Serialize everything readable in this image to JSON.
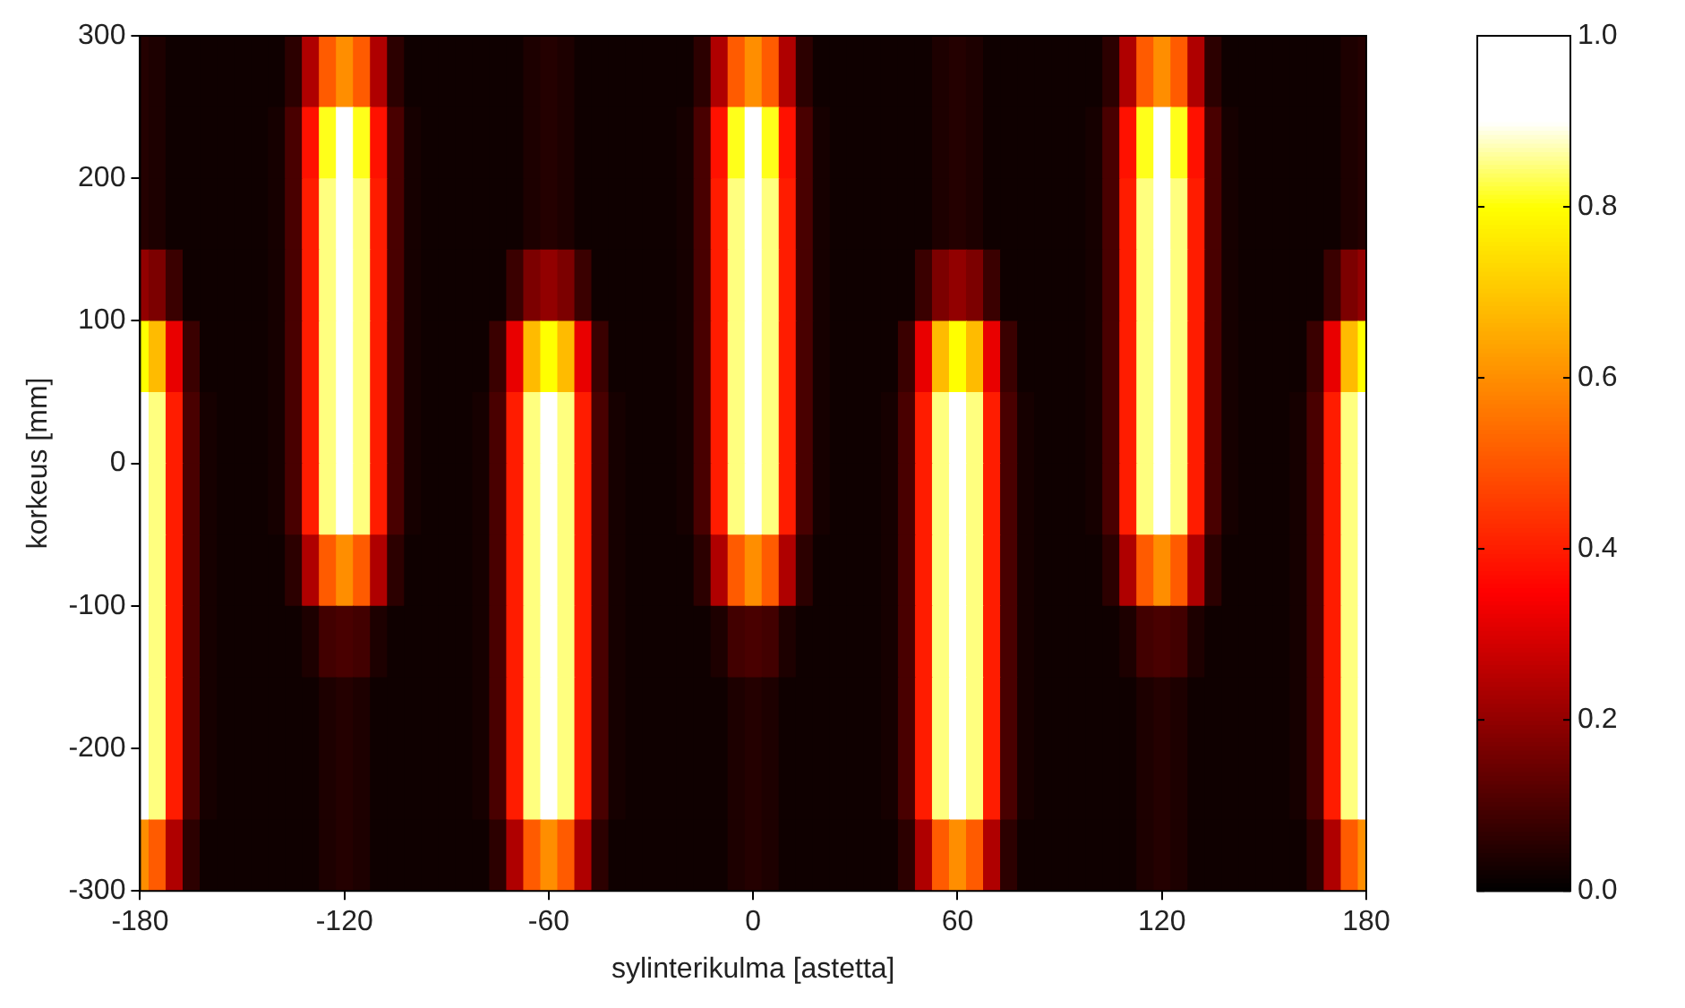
{
  "chart_data": {
    "type": "heatmap",
    "xlabel": "sylinterikulma [astetta]",
    "ylabel": "korkeus [mm]",
    "xlim": [
      -180,
      180
    ],
    "xticks": [
      -180,
      -120,
      -60,
      0,
      60,
      120,
      180
    ],
    "ylim": [
      -300,
      300
    ],
    "yticks": [
      -300,
      -200,
      -100,
      0,
      100,
      200,
      300
    ],
    "clim": [
      0,
      1
    ],
    "cticks": [
      {
        "value": 0,
        "label": "0.0"
      },
      {
        "value": 0.2,
        "label": "0.2"
      },
      {
        "value": 0.4,
        "label": "0.4"
      },
      {
        "value": 0.6,
        "label": "0.6"
      },
      {
        "value": 0.8,
        "label": "0.8"
      },
      {
        "value": 1,
        "label": "1.0"
      }
    ],
    "x": [
      -180,
      -175,
      -170,
      -165,
      -160,
      -155,
      -150,
      -145,
      -140,
      -135,
      -130,
      -125,
      -120,
      -115,
      -110,
      -105,
      -100,
      -95,
      -90,
      -85,
      -80,
      -75,
      -70,
      -65,
      -60,
      -55,
      -50,
      -45,
      -40,
      -35,
      -30,
      -25,
      -20,
      -15,
      -10,
      -5,
      0,
      5,
      10,
      15,
      20,
      25,
      30,
      35,
      40,
      45,
      50,
      55,
      60,
      65,
      70,
      75,
      80,
      85,
      90,
      95,
      100,
      105,
      110,
      115,
      120,
      125,
      130,
      135,
      140,
      145,
      150,
      155,
      160,
      165,
      170,
      175,
      180
    ],
    "y": [
      275,
      225,
      175,
      125,
      75,
      25,
      -25,
      -75,
      -125,
      -175,
      -225,
      -275
    ],
    "cells": [
      [
        0.05,
        0.04,
        0.02,
        0.02,
        0.02,
        0.02,
        0.02,
        0.02,
        0.02,
        0.06,
        0.24,
        0.51,
        0.6,
        0.51,
        0.24,
        0.06,
        0.02,
        0.02,
        0.02,
        0.02,
        0.02,
        0.02,
        0.02,
        0.04,
        0.05,
        0.04,
        0.02,
        0.02,
        0.02,
        0.02,
        0.02,
        0.02,
        0.02,
        0.06,
        0.24,
        0.51,
        0.6,
        0.51,
        0.24,
        0.06,
        0.02,
        0.02,
        0.02,
        0.02,
        0.02,
        0.02,
        0.02,
        0.04,
        0.05,
        0.04,
        0.02,
        0.02,
        0.02,
        0.02,
        0.02,
        0.02,
        0.02,
        0.06,
        0.24,
        0.51,
        0.6,
        0.51,
        0.24,
        0.06,
        0.02,
        0.02,
        0.02,
        0.02,
        0.02,
        0.02,
        0.02,
        0.04,
        0.05
      ],
      [
        0.05,
        0.04,
        0.02,
        0.02,
        0.02,
        0.02,
        0.02,
        0.02,
        0.03,
        0.1,
        0.38,
        0.81,
        0.95,
        0.81,
        0.38,
        0.1,
        0.03,
        0.02,
        0.02,
        0.02,
        0.02,
        0.02,
        0.02,
        0.04,
        0.05,
        0.04,
        0.02,
        0.02,
        0.02,
        0.02,
        0.02,
        0.02,
        0.03,
        0.1,
        0.38,
        0.81,
        0.95,
        0.81,
        0.38,
        0.1,
        0.03,
        0.02,
        0.02,
        0.02,
        0.02,
        0.02,
        0.02,
        0.04,
        0.05,
        0.04,
        0.02,
        0.02,
        0.02,
        0.02,
        0.02,
        0.02,
        0.03,
        0.1,
        0.38,
        0.81,
        0.95,
        0.81,
        0.38,
        0.1,
        0.03,
        0.02,
        0.02,
        0.02,
        0.02,
        0.02,
        0.02,
        0.04,
        0.05
      ],
      [
        0.05,
        0.04,
        0.02,
        0.02,
        0.02,
        0.02,
        0.02,
        0.02,
        0.03,
        0.1,
        0.4,
        0.85,
        1,
        0.85,
        0.4,
        0.1,
        0.03,
        0.02,
        0.02,
        0.02,
        0.02,
        0.02,
        0.02,
        0.04,
        0.05,
        0.04,
        0.02,
        0.02,
        0.02,
        0.02,
        0.02,
        0.02,
        0.03,
        0.1,
        0.4,
        0.85,
        1,
        0.85,
        0.4,
        0.1,
        0.03,
        0.02,
        0.02,
        0.02,
        0.02,
        0.02,
        0.02,
        0.04,
        0.05,
        0.04,
        0.02,
        0.02,
        0.02,
        0.02,
        0.02,
        0.02,
        0.03,
        0.1,
        0.4,
        0.85,
        1,
        0.85,
        0.4,
        0.1,
        0.03,
        0.02,
        0.02,
        0.02,
        0.02,
        0.02,
        0.02,
        0.04,
        0.05
      ],
      [
        0.2,
        0.17,
        0.08,
        0.02,
        0.02,
        0.02,
        0.02,
        0.02,
        0.03,
        0.1,
        0.4,
        0.85,
        1,
        0.85,
        0.4,
        0.1,
        0.03,
        0.02,
        0.02,
        0.02,
        0.02,
        0.02,
        0.08,
        0.17,
        0.2,
        0.17,
        0.08,
        0.02,
        0.02,
        0.02,
        0.02,
        0.02,
        0.03,
        0.1,
        0.4,
        0.85,
        1,
        0.85,
        0.4,
        0.1,
        0.03,
        0.02,
        0.02,
        0.02,
        0.02,
        0.02,
        0.08,
        0.17,
        0.2,
        0.17,
        0.08,
        0.02,
        0.02,
        0.02,
        0.02,
        0.02,
        0.03,
        0.1,
        0.4,
        0.85,
        1,
        0.85,
        0.4,
        0.1,
        0.03,
        0.02,
        0.02,
        0.02,
        0.02,
        0.02,
        0.08,
        0.17,
        0.2
      ],
      [
        0.8,
        0.68,
        0.32,
        0.08,
        0.02,
        0.02,
        0.02,
        0.02,
        0.03,
        0.1,
        0.4,
        0.85,
        1,
        0.85,
        0.4,
        0.1,
        0.03,
        0.02,
        0.02,
        0.02,
        0.02,
        0.08,
        0.32,
        0.68,
        0.8,
        0.68,
        0.32,
        0.08,
        0.02,
        0.02,
        0.02,
        0.02,
        0.03,
        0.1,
        0.4,
        0.85,
        1,
        0.85,
        0.4,
        0.1,
        0.03,
        0.02,
        0.02,
        0.02,
        0.02,
        0.08,
        0.32,
        0.68,
        0.8,
        0.68,
        0.32,
        0.08,
        0.02,
        0.02,
        0.02,
        0.02,
        0.03,
        0.1,
        0.4,
        0.85,
        1,
        0.85,
        0.4,
        0.1,
        0.03,
        0.02,
        0.02,
        0.02,
        0.02,
        0.08,
        0.32,
        0.68,
        0.8
      ],
      [
        1,
        0.85,
        0.4,
        0.1,
        0.03,
        0.02,
        0.02,
        0.02,
        0.03,
        0.1,
        0.4,
        0.85,
        1,
        0.85,
        0.4,
        0.1,
        0.03,
        0.02,
        0.02,
        0.02,
        0.03,
        0.1,
        0.4,
        0.85,
        1,
        0.85,
        0.4,
        0.1,
        0.03,
        0.02,
        0.02,
        0.02,
        0.03,
        0.1,
        0.4,
        0.85,
        1,
        0.85,
        0.4,
        0.1,
        0.03,
        0.02,
        0.02,
        0.02,
        0.03,
        0.1,
        0.4,
        0.85,
        1,
        0.85,
        0.4,
        0.1,
        0.03,
        0.02,
        0.02,
        0.02,
        0.03,
        0.1,
        0.4,
        0.85,
        1,
        0.85,
        0.4,
        0.1,
        0.03,
        0.02,
        0.02,
        0.02,
        0.03,
        0.1,
        0.4,
        0.85,
        1
      ],
      [
        1,
        0.85,
        0.4,
        0.1,
        0.03,
        0.02,
        0.02,
        0.02,
        0.03,
        0.1,
        0.4,
        0.85,
        1,
        0.85,
        0.4,
        0.1,
        0.03,
        0.02,
        0.02,
        0.02,
        0.03,
        0.1,
        0.4,
        0.85,
        1,
        0.85,
        0.4,
        0.1,
        0.03,
        0.02,
        0.02,
        0.02,
        0.03,
        0.1,
        0.4,
        0.85,
        1,
        0.85,
        0.4,
        0.1,
        0.03,
        0.02,
        0.02,
        0.02,
        0.03,
        0.1,
        0.4,
        0.85,
        1,
        0.85,
        0.4,
        0.1,
        0.03,
        0.02,
        0.02,
        0.02,
        0.03,
        0.1,
        0.4,
        0.85,
        1,
        0.85,
        0.4,
        0.1,
        0.03,
        0.02,
        0.02,
        0.02,
        0.03,
        0.1,
        0.4,
        0.85,
        1
      ],
      [
        1,
        0.85,
        0.4,
        0.1,
        0.03,
        0.02,
        0.02,
        0.02,
        0.02,
        0.06,
        0.24,
        0.51,
        0.6,
        0.51,
        0.24,
        0.06,
        0.02,
        0.02,
        0.02,
        0.02,
        0.03,
        0.1,
        0.4,
        0.85,
        1,
        0.85,
        0.4,
        0.1,
        0.03,
        0.02,
        0.02,
        0.02,
        0.02,
        0.06,
        0.24,
        0.51,
        0.6,
        0.51,
        0.24,
        0.06,
        0.02,
        0.02,
        0.02,
        0.02,
        0.03,
        0.1,
        0.4,
        0.85,
        1,
        0.85,
        0.4,
        0.1,
        0.03,
        0.02,
        0.02,
        0.02,
        0.02,
        0.06,
        0.24,
        0.51,
        0.6,
        0.51,
        0.24,
        0.06,
        0.02,
        0.02,
        0.02,
        0.02,
        0.03,
        0.1,
        0.4,
        0.85,
        1
      ],
      [
        1,
        0.85,
        0.4,
        0.1,
        0.03,
        0.02,
        0.02,
        0.02,
        0.02,
        0.02,
        0.04,
        0.09,
        0.1,
        0.09,
        0.04,
        0.02,
        0.02,
        0.02,
        0.02,
        0.02,
        0.03,
        0.1,
        0.4,
        0.85,
        1,
        0.85,
        0.4,
        0.1,
        0.03,
        0.02,
        0.02,
        0.02,
        0.02,
        0.02,
        0.04,
        0.09,
        0.1,
        0.09,
        0.04,
        0.02,
        0.02,
        0.02,
        0.02,
        0.02,
        0.03,
        0.1,
        0.4,
        0.85,
        1,
        0.85,
        0.4,
        0.1,
        0.03,
        0.02,
        0.02,
        0.02,
        0.02,
        0.02,
        0.04,
        0.09,
        0.1,
        0.09,
        0.04,
        0.02,
        0.02,
        0.02,
        0.02,
        0.02,
        0.03,
        0.1,
        0.4,
        0.85,
        1
      ],
      [
        1,
        0.85,
        0.4,
        0.1,
        0.03,
        0.02,
        0.02,
        0.02,
        0.02,
        0.02,
        0.02,
        0.04,
        0.05,
        0.04,
        0.02,
        0.02,
        0.02,
        0.02,
        0.02,
        0.02,
        0.03,
        0.1,
        0.4,
        0.85,
        1,
        0.85,
        0.4,
        0.1,
        0.03,
        0.02,
        0.02,
        0.02,
        0.02,
        0.02,
        0.02,
        0.04,
        0.05,
        0.04,
        0.02,
        0.02,
        0.02,
        0.02,
        0.02,
        0.02,
        0.03,
        0.1,
        0.4,
        0.85,
        1,
        0.85,
        0.4,
        0.1,
        0.03,
        0.02,
        0.02,
        0.02,
        0.02,
        0.02,
        0.02,
        0.04,
        0.05,
        0.04,
        0.02,
        0.02,
        0.02,
        0.02,
        0.02,
        0.02,
        0.03,
        0.1,
        0.4,
        0.85,
        1
      ],
      [
        1,
        0.85,
        0.4,
        0.1,
        0.03,
        0.02,
        0.02,
        0.02,
        0.02,
        0.02,
        0.02,
        0.04,
        0.05,
        0.04,
        0.02,
        0.02,
        0.02,
        0.02,
        0.02,
        0.02,
        0.03,
        0.1,
        0.4,
        0.85,
        1,
        0.85,
        0.4,
        0.1,
        0.03,
        0.02,
        0.02,
        0.02,
        0.02,
        0.02,
        0.02,
        0.04,
        0.05,
        0.04,
        0.02,
        0.02,
        0.02,
        0.02,
        0.02,
        0.02,
        0.03,
        0.1,
        0.4,
        0.85,
        1,
        0.85,
        0.4,
        0.1,
        0.03,
        0.02,
        0.02,
        0.02,
        0.02,
        0.02,
        0.02,
        0.04,
        0.05,
        0.04,
        0.02,
        0.02,
        0.02,
        0.02,
        0.02,
        0.02,
        0.03,
        0.1,
        0.4,
        0.85,
        1
      ],
      [
        0.6,
        0.51,
        0.24,
        0.06,
        0.02,
        0.02,
        0.02,
        0.02,
        0.02,
        0.02,
        0.02,
        0.04,
        0.05,
        0.04,
        0.02,
        0.02,
        0.02,
        0.02,
        0.02,
        0.02,
        0.02,
        0.06,
        0.24,
        0.51,
        0.6,
        0.51,
        0.24,
        0.06,
        0.02,
        0.02,
        0.02,
        0.02,
        0.02,
        0.02,
        0.02,
        0.04,
        0.05,
        0.04,
        0.02,
        0.02,
        0.02,
        0.02,
        0.02,
        0.02,
        0.02,
        0.06,
        0.24,
        0.51,
        0.6,
        0.51,
        0.24,
        0.06,
        0.02,
        0.02,
        0.02,
        0.02,
        0.02,
        0.02,
        0.02,
        0.04,
        0.05,
        0.04,
        0.02,
        0.02,
        0.02,
        0.02,
        0.02,
        0.02,
        0.02,
        0.06,
        0.24,
        0.51,
        0.6
      ]
    ]
  }
}
